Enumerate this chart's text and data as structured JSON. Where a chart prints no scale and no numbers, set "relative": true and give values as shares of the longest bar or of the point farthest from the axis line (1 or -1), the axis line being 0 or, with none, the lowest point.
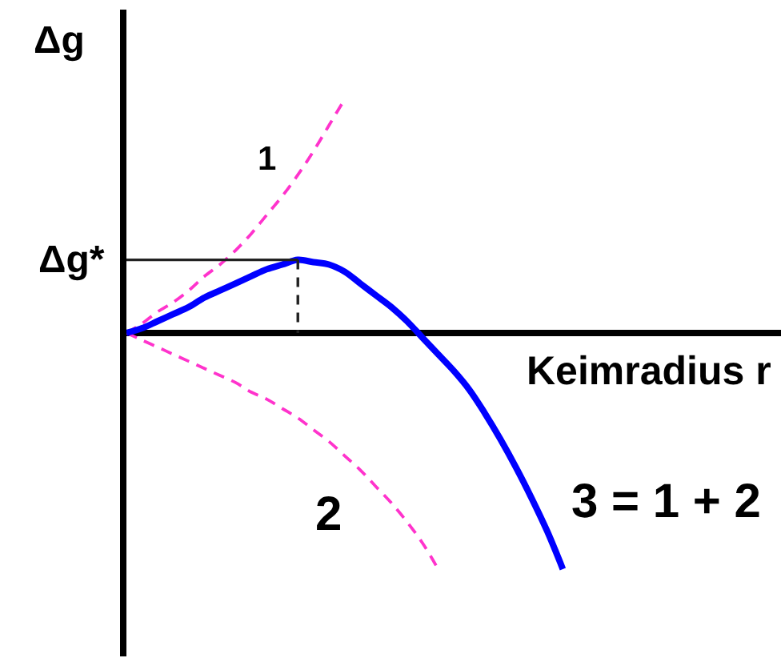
{
  "chart_data": {
    "type": "line",
    "relative": true,
    "legend": false,
    "ylabel": "Δg",
    "xlabel": "Keimradius r",
    "categories": [
      null,
      null,
      null,
      null,
      null,
      null,
      null,
      null,
      null,
      null,
      null,
      null,
      null,
      null,
      null,
      null,
      null,
      null,
      null,
      null,
      null,
      null,
      null,
      null,
      null,
      null,
      null,
      null,
      null,
      null,
      null,
      null,
      null,
      null,
      null,
      null,
      null,
      null,
      null,
      null,
      null,
      null,
      null
    ],
    "series": [
      {
        "name": "1",
        "color": "#ff33cc",
        "line_style": "dashed",
        "values": [
          0,
          0.04,
          0.09,
          0.13,
          0.18,
          0.24,
          0.29,
          0.35,
          0.42,
          0.5,
          0.58,
          0.67,
          0.77,
          0.88,
          0.99,
          null,
          null,
          null,
          null,
          null,
          null,
          null,
          null,
          null,
          null,
          null,
          null,
          null,
          null,
          null,
          null,
          null,
          null,
          null,
          null,
          null,
          null,
          null,
          null,
          null,
          null,
          null,
          null
        ]
      },
      {
        "name": "2",
        "color": "#ff33cc",
        "line_style": "dashed",
        "values": [
          0,
          -0.03,
          -0.06,
          -0.09,
          -0.12,
          -0.15,
          -0.18,
          -0.21,
          -0.25,
          -0.28,
          -0.32,
          -0.36,
          -0.41,
          -0.46,
          -0.52,
          -0.58,
          -0.65,
          -0.72,
          -0.8,
          -0.89,
          -1,
          null,
          null,
          null,
          null,
          null,
          null,
          null,
          null,
          null,
          null,
          null,
          null,
          null,
          null,
          null,
          null,
          null,
          null,
          null,
          null,
          null,
          null
        ]
      },
      {
        "name": "3 = 1 + 2",
        "color": "#0000ff",
        "line_style": "solid",
        "values": [
          0,
          0.02,
          0.05,
          0.08,
          0.11,
          0.15,
          0.18,
          0.21,
          0.24,
          0.27,
          0.29,
          0.31,
          0.3,
          0.29,
          0.26,
          0.21,
          0.16,
          0.11,
          0.05,
          -0.02,
          -0.09,
          -0.16,
          -0.24,
          -0.34,
          -0.45,
          -0.57,
          -0.7,
          -0.84,
          -1,
          null,
          null,
          null,
          null,
          null,
          null,
          null,
          null,
          null,
          null,
          null,
          null,
          null,
          null
        ]
      }
    ],
    "ref_lines": [
      {
        "axis": "y",
        "value": 0.31,
        "label": "Δg*",
        "color": "#222222"
      }
    ]
  }
}
